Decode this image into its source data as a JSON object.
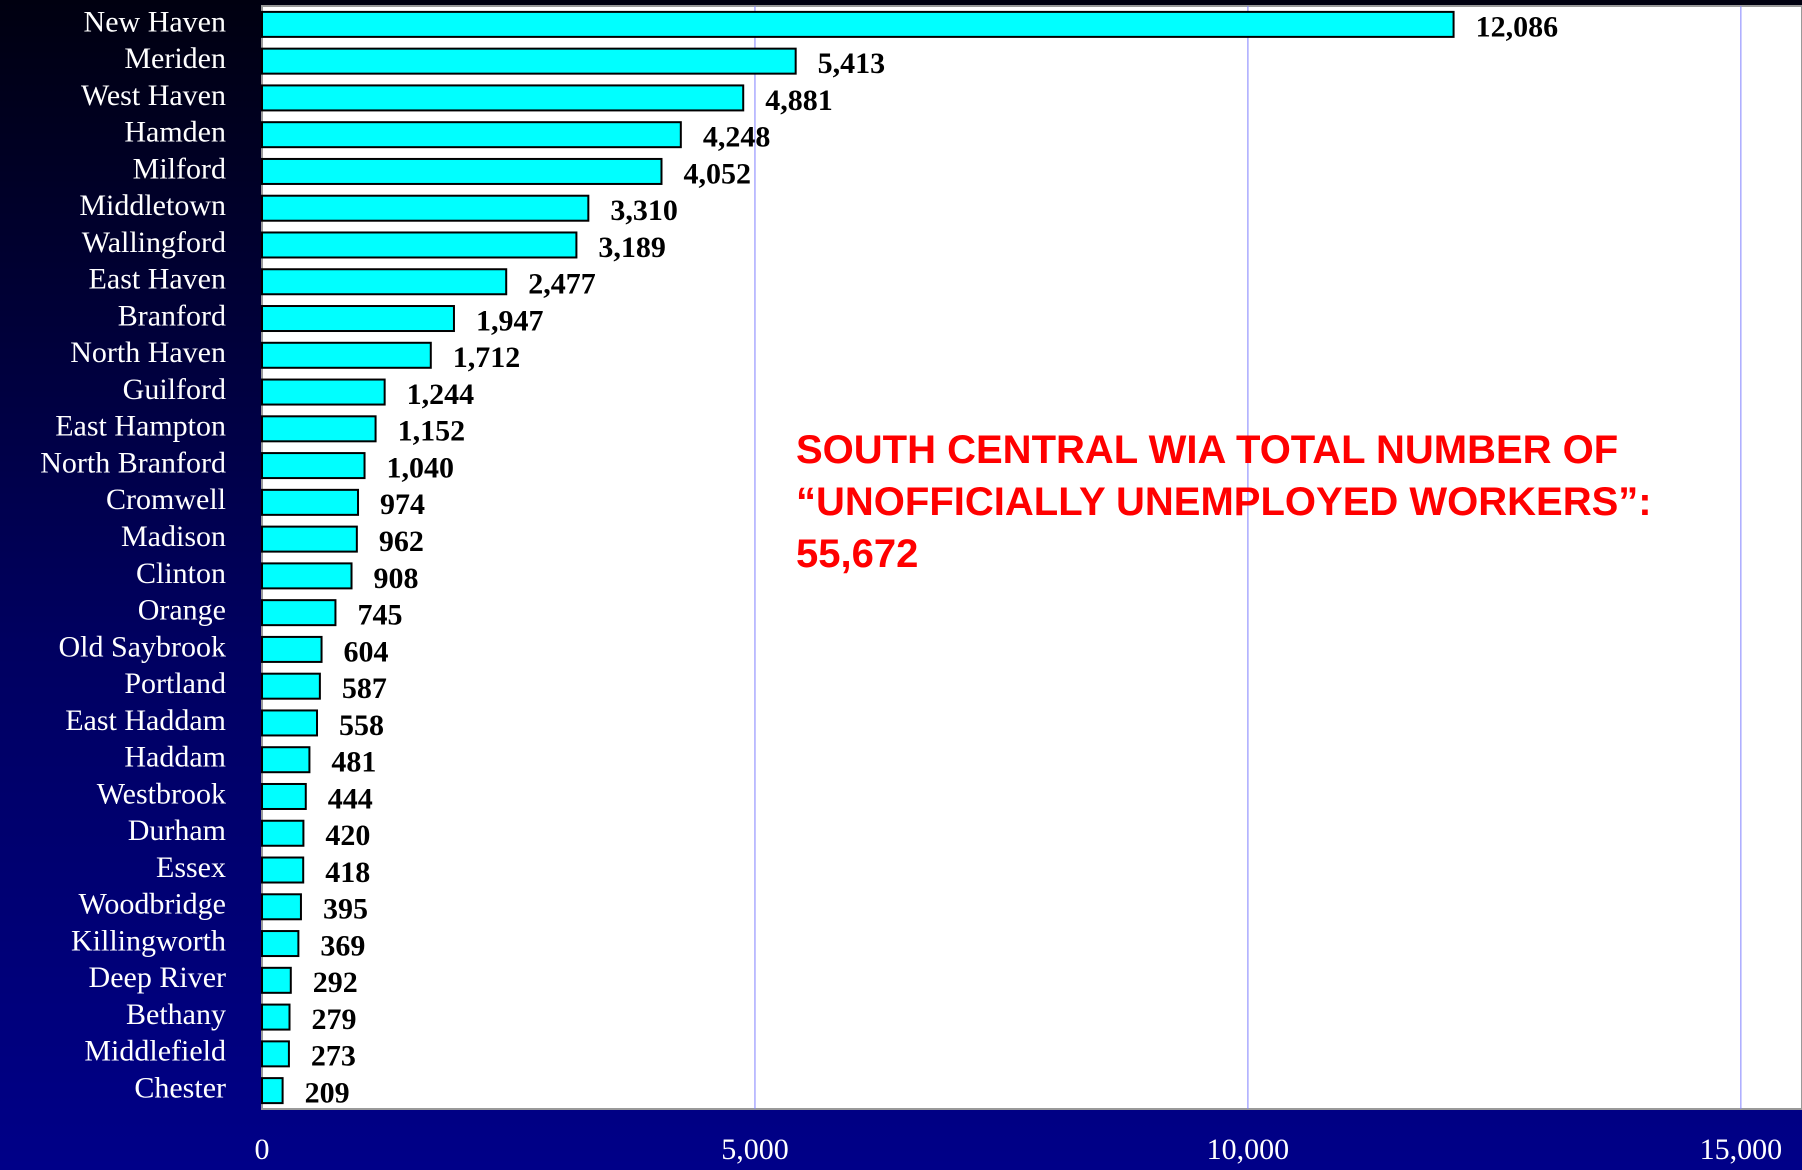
{
  "chart_data": {
    "type": "hbar",
    "annotation": "SOUTH CENTRAL WIA TOTAL NUMBER OF “UNOFFICIALLY UNEMPLOYED WORKERS”: 55,672",
    "categories": [
      "New Haven",
      "Meriden",
      "West Haven",
      "Hamden",
      "Milford",
      "Middletown",
      "Wallingford",
      "East Haven",
      "Branford",
      "North Haven",
      "Guilford",
      "East Hampton",
      "North Branford",
      "Cromwell",
      "Madison",
      "Clinton",
      "Orange",
      "Old Saybrook",
      "Portland",
      "East Haddam",
      "Haddam",
      "Westbrook",
      "Durham",
      "Essex",
      "Woodbridge",
      "Killingworth",
      "Deep River",
      "Bethany",
      "Middlefield",
      "Chester"
    ],
    "values": [
      12086,
      5413,
      4881,
      4248,
      4052,
      3310,
      3189,
      2477,
      1947,
      1712,
      1244,
      1152,
      1040,
      974,
      962,
      908,
      745,
      604,
      587,
      558,
      481,
      444,
      420,
      418,
      395,
      369,
      292,
      279,
      273,
      209
    ],
    "value_labels": [
      "12,086",
      "5,413",
      "4,881",
      "4,248",
      "4,052",
      "3,310",
      "3,189",
      "2,477",
      "1,947",
      "1,712",
      "1,244",
      "1,152",
      "1,040",
      "974",
      "962",
      "908",
      "745",
      "604",
      "587",
      "558",
      "481",
      "444",
      "420",
      "418",
      "395",
      "369",
      "292",
      "279",
      "273",
      "209"
    ],
    "color": "#00ffff",
    "xlim": [
      0,
      15620
    ],
    "xticks": [
      0,
      {
        "value": 5000,
        "label": "5,000"
      },
      {
        "value": 10000,
        "label": "10,000"
      },
      {
        "value": 15000,
        "label": "15,000"
      }
    ],
    "grid": true
  }
}
